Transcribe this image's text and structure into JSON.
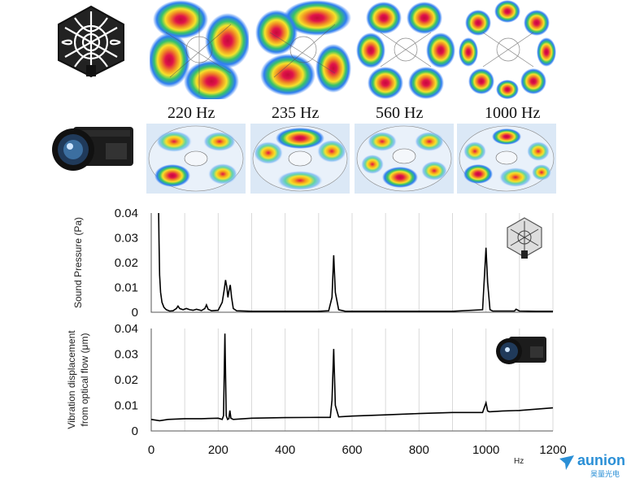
{
  "frequency_labels": [
    "220 Hz",
    "235 Hz",
    "560 Hz",
    "1000 Hz"
  ],
  "icons": {
    "top_left": "acoustic-camera-icon",
    "middle_left": "high-speed-camera-icon",
    "chart1_corner": "acoustic-camera-icon",
    "chart2_corner": "high-speed-camera-icon"
  },
  "colors": {
    "line": "#000000",
    "grid": "#d9d9d9",
    "heat_high": "#e0124a",
    "heat_mid": "#f6e22a",
    "heat_low": "#2f7df2",
    "watermark": "#2a8fd6"
  },
  "watermark": {
    "brand": "aunion",
    "sub": "昊量光电"
  },
  "chart_data": [
    {
      "type": "line",
      "ylabel": "Sound Pressure (Pa)",
      "xlabel": "",
      "xlim": [
        0,
        1200
      ],
      "ylim": [
        0,
        0.04
      ],
      "xticks": [],
      "yticks": [
        "0",
        "0.01",
        "0.02",
        "0.03",
        "0.04"
      ],
      "grid": true,
      "series": [
        {
          "x": [
            22,
            23,
            25,
            28,
            32,
            38,
            45,
            55,
            65,
            75,
            80,
            85,
            95,
            105,
            115,
            125,
            135,
            150,
            160,
            165,
            170,
            180,
            200,
            212,
            218,
            222,
            226,
            229,
            232,
            236,
            240,
            245,
            255,
            300,
            400,
            500,
            530,
            540,
            545,
            550,
            560,
            580,
            700,
            900,
            990,
            1000,
            1005,
            1012,
            1020,
            1060,
            1085,
            1090,
            1100,
            1150,
            1200
          ],
          "y": [
            0.04,
            0.03,
            0.015,
            0.008,
            0.004,
            0.002,
            0.001,
            0.0005,
            0.0006,
            0.0015,
            0.0025,
            0.0015,
            0.001,
            0.0015,
            0.001,
            0.0008,
            0.0012,
            0.0007,
            0.0015,
            0.003,
            0.0012,
            0.0006,
            0.0008,
            0.004,
            0.009,
            0.013,
            0.01,
            0.006,
            0.0085,
            0.011,
            0.006,
            0.0015,
            0.0006,
            0.0004,
            0.0004,
            0.0004,
            0.0006,
            0.006,
            0.023,
            0.008,
            0.001,
            0.0004,
            0.0004,
            0.0004,
            0.001,
            0.026,
            0.012,
            0.001,
            0.0005,
            0.0005,
            0.0005,
            0.0012,
            0.0005,
            0.0004,
            0.0004
          ]
        }
      ]
    },
    {
      "type": "line",
      "ylabel": "Vibration displacement from optical flow (μm)",
      "xlabel": "Hz",
      "xlim": [
        0,
        1200
      ],
      "ylim": [
        0,
        0.04
      ],
      "xticks": [
        "0",
        "200",
        "400",
        "600",
        "800",
        "1000",
        "1200"
      ],
      "yticks": [
        "0",
        "0.01",
        "0.02",
        "0.03",
        "0.04"
      ],
      "grid": true,
      "series": [
        {
          "x": [
            0,
            25,
            50,
            100,
            150,
            200,
            212,
            216,
            220,
            224,
            228,
            232,
            235,
            238,
            245,
            300,
            400,
            500,
            535,
            540,
            545,
            550,
            560,
            600,
            700,
            800,
            900,
            990,
            1000,
            1005,
            1010,
            1050,
            1100,
            1150,
            1200
          ],
          "y": [
            0.0045,
            0.004,
            0.0045,
            0.0048,
            0.0048,
            0.005,
            0.0045,
            0.006,
            0.038,
            0.006,
            0.0045,
            0.0048,
            0.008,
            0.005,
            0.0045,
            0.005,
            0.0052,
            0.0053,
            0.0053,
            0.012,
            0.032,
            0.01,
            0.0055,
            0.0058,
            0.0063,
            0.0068,
            0.0072,
            0.0072,
            0.011,
            0.0078,
            0.0075,
            0.0078,
            0.008,
            0.0085,
            0.009
          ]
        }
      ]
    }
  ]
}
